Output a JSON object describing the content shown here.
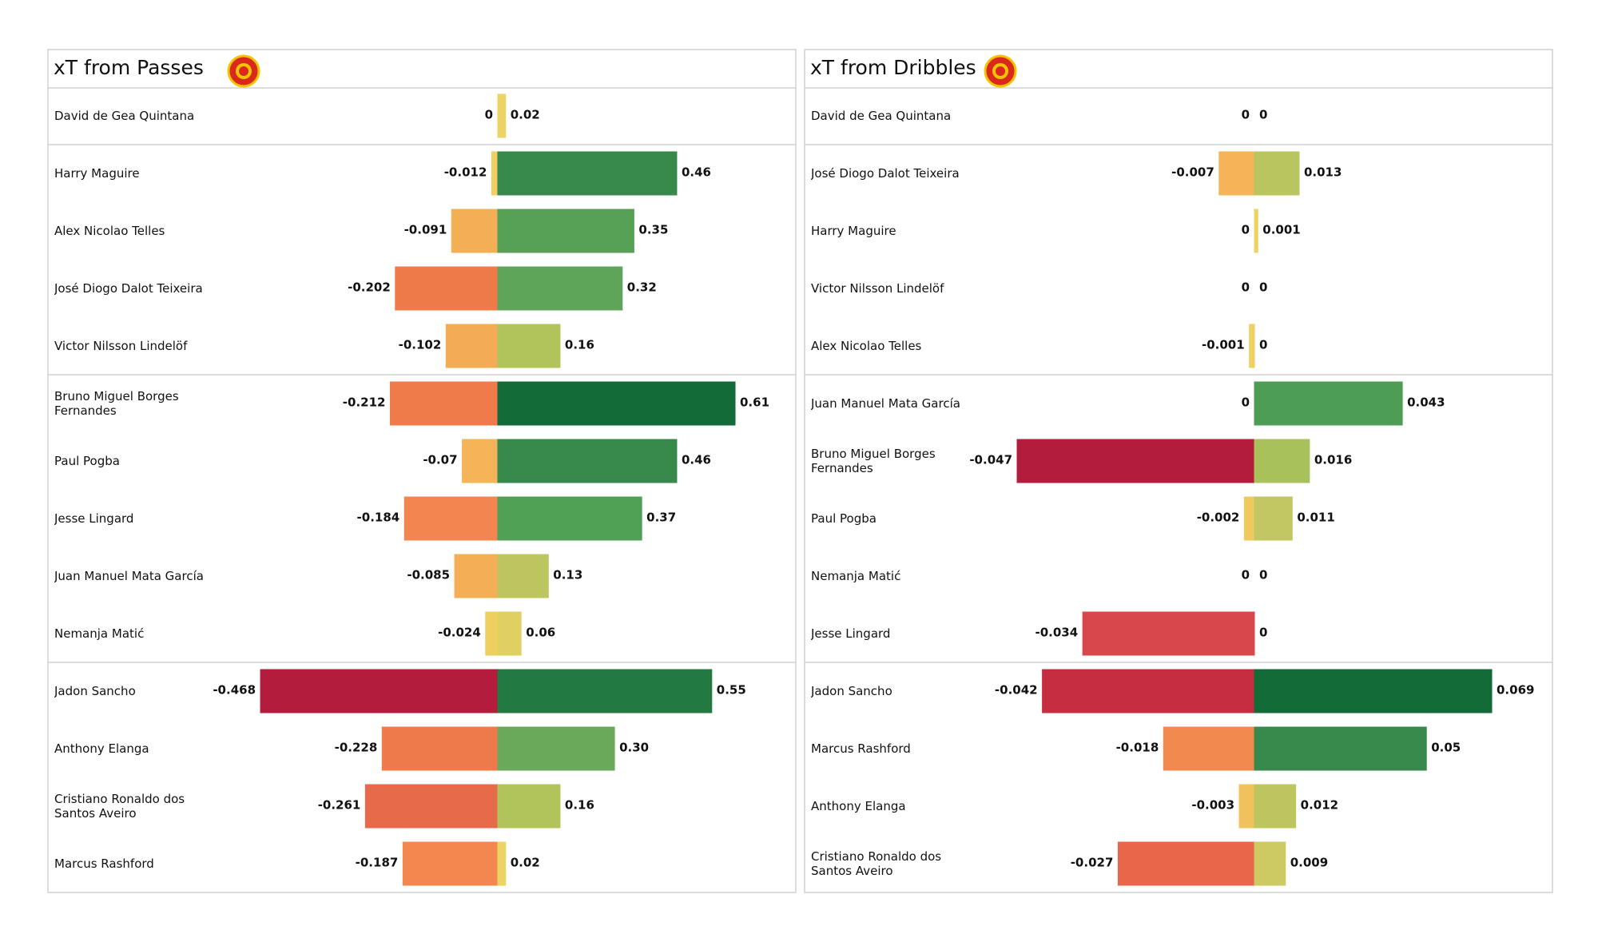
{
  "chart_data": [
    {
      "type": "diverging-bar",
      "title": "xT from Passes",
      "categories": [
        "David de Gea Quintana",
        "Harry  Maguire",
        "Alex Nicolao Telles",
        "José Diogo Dalot Teixeira",
        "Victor Nilsson Lindelöf",
        "Bruno Miguel Borges Fernandes",
        "Paul Pogba",
        "Jesse Lingard",
        "Juan Manuel Mata García",
        "Nemanja Matić",
        "Jadon Sancho",
        "Anthony Elanga",
        "Cristiano Ronaldo dos Santos Aveiro",
        "Marcus Rashford"
      ],
      "series": [
        {
          "values": [
            0,
            -0.012,
            -0.091,
            -0.202,
            -0.102,
            -0.212,
            -0.07,
            -0.184,
            -0.085,
            -0.024,
            -0.468,
            -0.228,
            -0.261,
            -0.187
          ],
          "colors": [
            "#ecd362",
            "#f0d060",
            "#f4ae55",
            "#ee7a4a",
            "#f4ab55",
            "#ef7b4b",
            "#f5b458",
            "#f28550",
            "#f4ae56",
            "#efcf60",
            "#b41c3e",
            "#ee7a4b",
            "#e76a4b",
            "#f2884f"
          ]
        },
        {
          "values": [
            0.02,
            0.46,
            0.35,
            0.32,
            0.16,
            0.61,
            0.46,
            0.37,
            0.13,
            0.06,
            0.55,
            0.3,
            0.16,
            0.02
          ],
          "value_labels": [
            "0.02",
            "0.46",
            "0.35",
            "0.32",
            "0.16",
            "0.61",
            "0.46",
            "0.37",
            "0.13",
            "0.06",
            "0.55",
            "0.30",
            "0.16",
            "0.02"
          ],
          "colors": [
            "#ecd362",
            "#37894c",
            "#57a157",
            "#5ea55a",
            "#b0c45b",
            "#136b38",
            "#37894c",
            "#50a056",
            "#bdc55f",
            "#e0d063",
            "#237a40",
            "#6aa85a",
            "#b0c45b",
            "#ecd362"
          ]
        }
      ]
    },
    {
      "type": "diverging-bar",
      "title": "xT from Dribbles",
      "categories": [
        "David de Gea Quintana",
        "José Diogo Dalot Teixeira",
        "Harry  Maguire",
        "Victor Nilsson Lindelöf",
        "Alex Nicolao Telles",
        "Juan Manuel Mata García",
        "Bruno Miguel Borges Fernandes",
        "Paul Pogba",
        "Nemanja Matić",
        "Jesse Lingard",
        "Jadon Sancho",
        "Marcus Rashford",
        "Anthony Elanga",
        "Cristiano Ronaldo dos Santos Aveiro"
      ],
      "series": [
        {
          "values": [
            0,
            -0.007,
            0,
            0,
            -0.001,
            0,
            -0.047,
            -0.002,
            0,
            -0.034,
            -0.042,
            -0.018,
            -0.003,
            -0.027
          ],
          "colors": [
            "#ecd362",
            "#f5b458",
            "#ecd362",
            "#ecd362",
            "#efd060",
            "#ecd362",
            "#b41c3e",
            "#f0c860",
            "#ecd362",
            "#d8474a",
            "#c72d40",
            "#f28a4f",
            "#f1c25c",
            "#e86649"
          ]
        },
        {
          "values": [
            0,
            0.013,
            0.001,
            0,
            0,
            0.043,
            0.016,
            0.011,
            0,
            0,
            0.069,
            0.05,
            0.012,
            0.009
          ],
          "colors": [
            "#ecd362",
            "#b9c55e",
            "#ecd362",
            "#ecd362",
            "#ecd362",
            "#4d9d55",
            "#a9c15b",
            "#c2c763",
            "#ecd362",
            "#ecd362",
            "#136b38",
            "#37894c",
            "#bdc55f",
            "#cdca63"
          ]
        }
      ]
    }
  ]
}
